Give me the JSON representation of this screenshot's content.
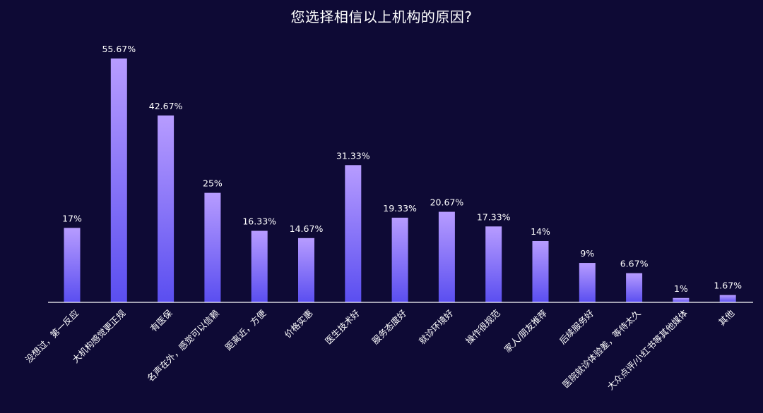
{
  "chart_data": {
    "type": "bar",
    "title": "您选择相信以上机构的原因?",
    "xlabel": "",
    "ylabel": "",
    "ylim": [
      0,
      60
    ],
    "grid": false,
    "legend": "none",
    "categories": [
      "没想过，第一反应",
      "大机构感觉更正规",
      "有医保",
      "名声在外，感觉可以信赖",
      "距离近，方便",
      "价格实惠",
      "医生技术好",
      "服务态度好",
      "就诊环境好",
      "操作很规范",
      "家人/朋友推荐",
      "后续服务好",
      "医院就诊体验差，等待太久",
      "大众点评/小红书等其他媒体",
      "其他"
    ],
    "values": [
      17,
      55.67,
      42.67,
      25,
      16.33,
      14.67,
      31.33,
      19.33,
      20.67,
      17.33,
      14,
      9,
      6.67,
      1,
      1.67
    ],
    "data_labels": [
      "17%",
      "55.67%",
      "42.67%",
      "25%",
      "16.33%",
      "14.67%",
      "31.33%",
      "19.33%",
      "20.67%",
      "17.33%",
      "14%",
      "9%",
      "6.67%",
      "1%",
      "1.67%"
    ]
  },
  "colors": {
    "background": "#0e0a35",
    "bar_top": "#b79cff",
    "bar_bottom": "#5a4ef0",
    "axis": "#ffffff",
    "text": "#ffffff"
  }
}
